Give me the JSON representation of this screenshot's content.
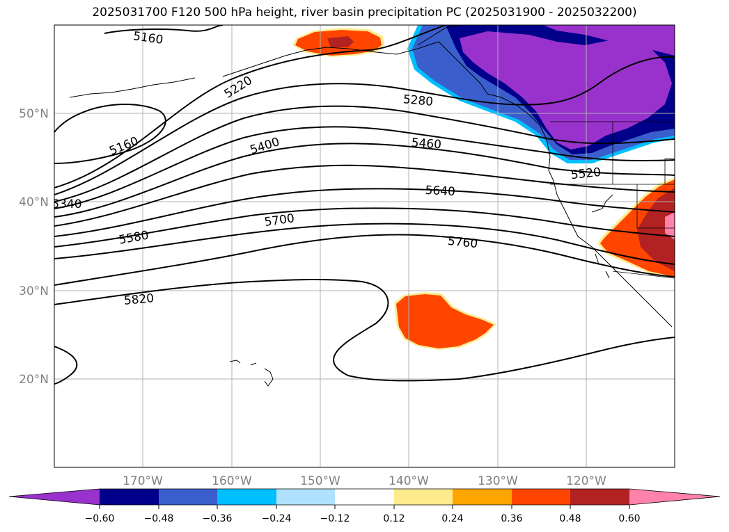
{
  "title": "2025031700 F120 500 hPa height, river basin precipitation PC (2025031900 - 2025032200)",
  "lat_labels": [
    "50°N",
    "40°N",
    "30°N",
    "20°N"
  ],
  "lon_labels": [
    "170°W",
    "160°W",
    "150°W",
    "140°W",
    "130°W",
    "120°W"
  ],
  "contour_labels": [
    "5160",
    "5220",
    "5280",
    "5160",
    "5400",
    "5460",
    "5520",
    "5340",
    "5640",
    "5700",
    "5580",
    "5760",
    "5820"
  ],
  "colorbar": {
    "ticks": [
      "−0.60",
      "−0.48",
      "−0.36",
      "−0.24",
      "−0.12",
      "0.12",
      "0.24",
      "0.36",
      "0.48",
      "0.60"
    ],
    "colors": [
      "#9932cc",
      "#00008b",
      "#3a5fcd",
      "#00bfff",
      "#b0e2ff",
      "#ffffff",
      "#fdeb8e",
      "#ffa500",
      "#ff4500",
      "#b22222",
      "#ff82ab"
    ]
  }
}
